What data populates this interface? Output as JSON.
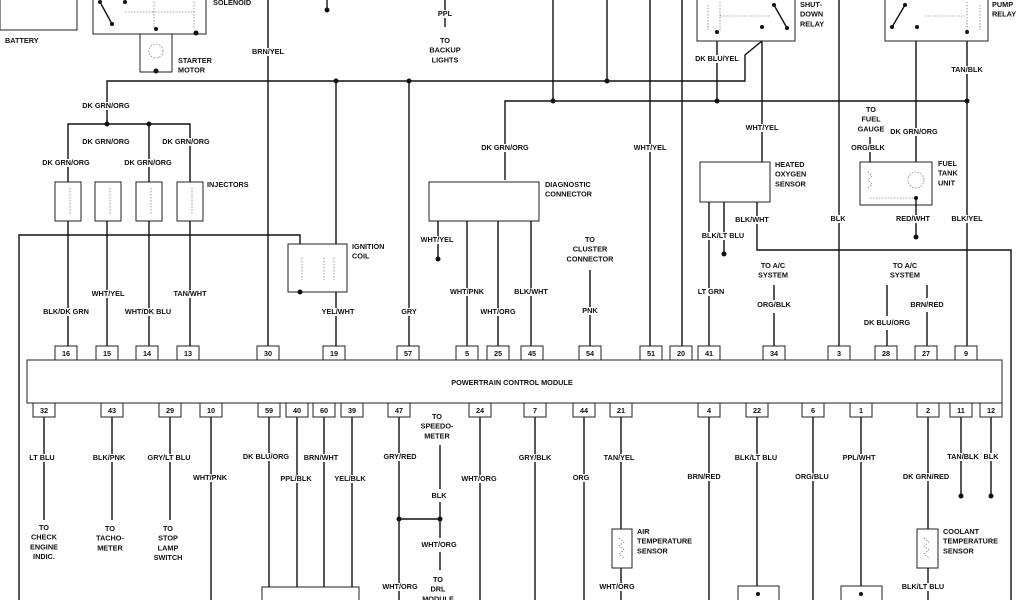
{
  "diagram": {
    "module_title": "POWERTRAIN CONTROL MODULE",
    "components": {
      "battery": [
        "BATTERY"
      ],
      "solenoid": [
        "SOLENOID"
      ],
      "starter": [
        "STARTER",
        "MOTOR"
      ],
      "backup": [
        "TO",
        "BACKUP",
        "LIGHTS"
      ],
      "injectors": [
        "INJECTORS"
      ],
      "coil": [
        "IGNITION",
        "COIL"
      ],
      "diag": [
        "DIAGNOSTIC",
        "CONNECTOR"
      ],
      "cluster": [
        "TO",
        "CLUSTER",
        "CONNECTOR"
      ],
      "shutdown": [
        "SHUT-",
        "DOWN",
        "RELAY"
      ],
      "o2": [
        "HEATED",
        "OXYGEN",
        "SENSOR"
      ],
      "fuelgauge": [
        "TO",
        "FUEL",
        "GAUGE"
      ],
      "tank": [
        "FUEL",
        "TANK",
        "UNIT"
      ],
      "pump": [
        "PUMP",
        "RELAY"
      ],
      "ac1": [
        "TO A/C",
        "SYSTEM"
      ],
      "ac2": [
        "TO A/C",
        "SYSTEM"
      ],
      "checkengine": [
        "TO",
        "CHECK",
        "ENGINE",
        "INDIC."
      ],
      "tach": [
        "TO",
        "TACHO-",
        "METER"
      ],
      "stoplamp": [
        "TO",
        "STOP",
        "LAMP",
        "SWITCH"
      ],
      "speedo": [
        "TO",
        "SPEEDO-",
        "METER"
      ],
      "drl": [
        "TO",
        "DRL",
        "MODULE"
      ],
      "airtemp": [
        "AIR",
        "TEMPERATURE",
        "SENSOR"
      ],
      "coolant": [
        "COOLANT",
        "TEMPERATURE",
        "SENSOR"
      ]
    },
    "wire_labels": [
      "BRN/YEL",
      "PPL",
      "DK GRN/ORG",
      "DK GRN/ORG",
      "DK GRN/ORG",
      "DK GRN/ORG",
      "DK GRN/ORG",
      "DK GRN/ORG",
      "WHT/YEL",
      "DK BLU/YEL",
      "WHT/YEL",
      "DK GRN/ORG",
      "ORG/BLK",
      "TAN/BLK",
      "WHT/YEL",
      "BLK/WHT",
      "BLK/LT BLU",
      "BLK",
      "RED/WHT",
      "BLK/YEL",
      "WHT/YEL",
      "TAN/WHT",
      "WHT/PNK",
      "BLK/WHT",
      "LT GRN",
      "BLK/DK GRN",
      "WHT/DK BLU",
      "YEL/WHT",
      "GRY",
      "WHT/ORG",
      "PNK",
      "ORG/BLK",
      "DK BLU/ORG",
      "BRN/RED",
      "LT BLU",
      "BLK/PNK",
      "GRY/LT BLU",
      "WHT/PNK",
      "DK BLU/ORG",
      "PPL/BLK",
      "BRN/WHT",
      "YEL/BLK",
      "GRY/RED",
      "WHT/ORG",
      "GRY/BLK",
      "ORG",
      "TAN/YEL",
      "BRN/RED",
      "BLK/LT BLU",
      "ORG/BLU",
      "PPL/WHT",
      "DK GRN/RED",
      "TAN/BLK",
      "BLK",
      "BLK",
      "WHT/ORG",
      "WHT/ORG",
      "WHT/ORG",
      "BLK/LT BLU",
      "BLK/LT BLU"
    ],
    "pins_top": [
      "16",
      "15",
      "14",
      "13",
      "30",
      "19",
      "57",
      "5",
      "25",
      "45",
      "54",
      "51",
      "20",
      "41",
      "34",
      "3",
      "28",
      "27",
      "9"
    ],
    "pins_bottom": [
      "32",
      "43",
      "29",
      "10",
      "59",
      "40",
      "60",
      "39",
      "47",
      "24",
      "7",
      "44",
      "21",
      "4",
      "22",
      "6",
      "1",
      "2",
      "11",
      "12"
    ]
  }
}
